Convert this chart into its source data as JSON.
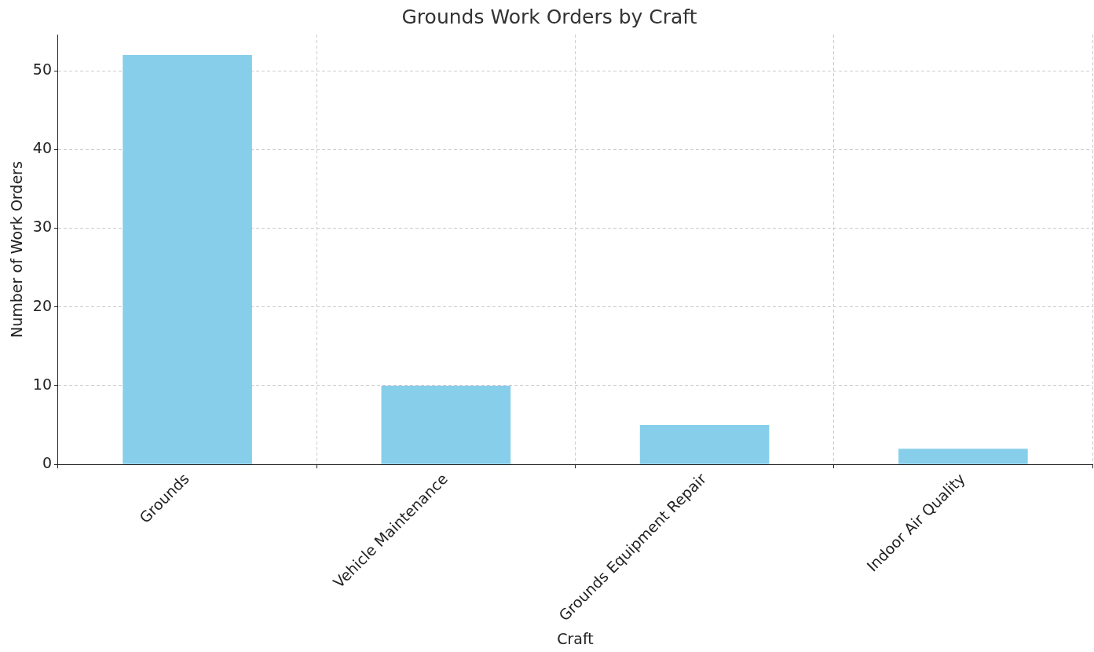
{
  "chart_data": {
    "type": "bar",
    "title": "Grounds Work Orders by Craft",
    "xlabel": "Craft",
    "ylabel": "Number of Work Orders",
    "categories": [
      "Grounds",
      "Vehicle Maintenance",
      "Grounds Equipment Repair",
      "Indoor Air Quality"
    ],
    "values": [
      52,
      10,
      5,
      2
    ],
    "color": "#87ceeb",
    "ylim": [
      0,
      54.6
    ],
    "yticks": [
      0,
      10,
      20,
      30,
      40,
      50
    ],
    "grid": true
  }
}
